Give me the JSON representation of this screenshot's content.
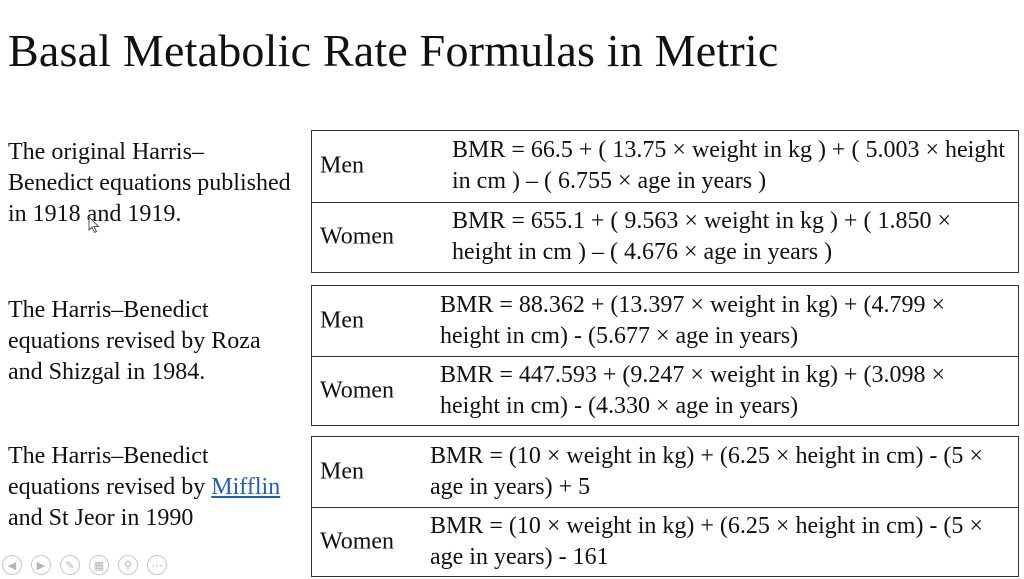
{
  "slide": {
    "title": "Basal Metabolic Rate Formulas in Metric"
  },
  "sections": [
    {
      "label": "The original Harris– Benedict equations published in 1918 and 1919.",
      "rows": [
        {
          "gender": "Men",
          "formula": "BMR = 66.5 + ( 13.75 × weight in kg ) + ( 5.003 × height in cm ) – ( 6.755 × age in years )"
        },
        {
          "gender": "Women",
          "formula": "BMR = 655.1 + ( 9.563 × weight in kg ) + ( 1.850 × height in cm ) – ( 4.676 × age in years )"
        }
      ]
    },
    {
      "label": "The Harris–Benedict equations revised by Roza and Shizgal in 1984.",
      "rows": [
        {
          "gender": "Men",
          "formula": "BMR = 88.362 + (13.397 × weight in kg) + (4.799 × height in cm) - (5.677 × age in years)"
        },
        {
          "gender": "Women",
          "formula": "BMR = 447.593 + (9.247 × weight in kg) + (3.098 × height in cm) - (4.330 × age in years)"
        }
      ]
    },
    {
      "label_before": "The Harris–Benedict equations revised by",
      "label_link": "Mifflin",
      "label_after": "and St Jeor in 1990",
      "rows": [
        {
          "gender": "Men",
          "formula": "BMR = (10 × weight in kg) + (6.25 × height in cm) - (5 × age in years) + 5"
        },
        {
          "gender": "Women",
          "formula": "BMR = (10 × weight in kg) + (6.25 × height in cm) - (5 × age in years) - 161"
        }
      ]
    }
  ],
  "toolbar": {
    "icons": [
      "previous-icon",
      "next-icon",
      "pen-icon",
      "slides-icon",
      "zoom-icon",
      "more-icon"
    ]
  },
  "colors": {
    "link": "#1f5fb7",
    "border": "#333333",
    "text": "#111111"
  }
}
